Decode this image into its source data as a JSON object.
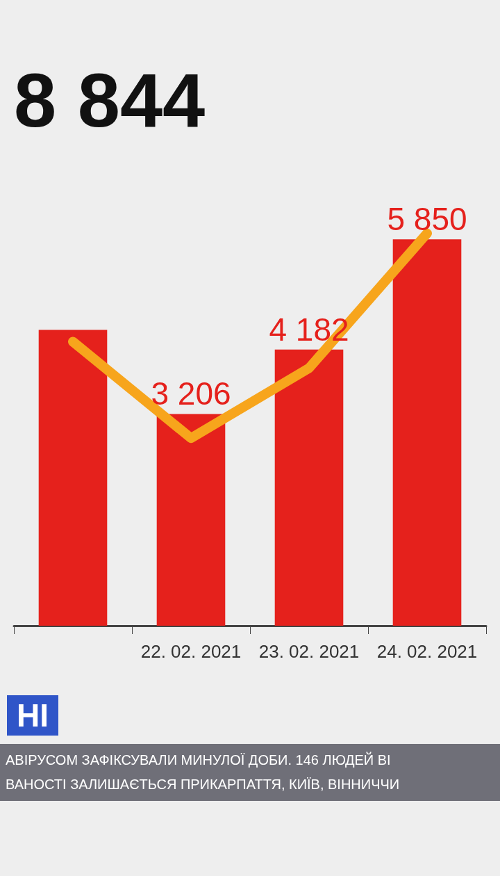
{
  "chart_data": {
    "type": "bar",
    "title": "8 844",
    "categories": [
      null,
      "22. 02. 2021",
      "23. 02. 2021",
      "24. 02. 2021"
    ],
    "series": [
      {
        "color": "#e5211c",
        "values": [
          4480,
          3206,
          4182,
          5850
        ],
        "value_labels": [
          null,
          "3 206",
          "4 182",
          "5 850"
        ]
      },
      {
        "type": "line",
        "color": "#f7a51c",
        "values": [
          4300,
          2840,
          3900,
          5940
        ]
      }
    ],
    "annotations": [
      "НІ",
      "АВІРУСОМ ЗАФІКСУВАЛИ МИНУЛОЇ ДОБИ. 146 ЛЮДЕЙ ВІ",
      "ВАНОСТІ ЗАЛИШАЄТЬСЯ ПРИКАРПАТТЯ, КИЇВ, ВІННИЧЧИ"
    ]
  }
}
